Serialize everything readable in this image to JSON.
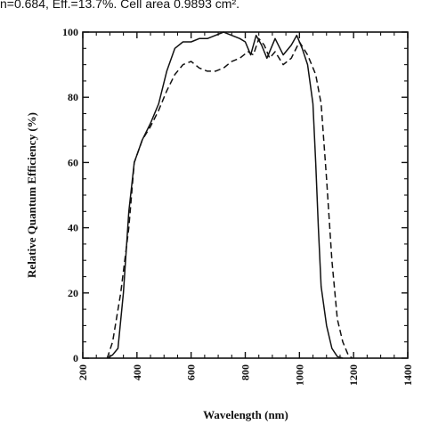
{
  "caption": "n=0.684, Eff.=13.7%. Cell area 0.9893 cm².",
  "chart_data": {
    "type": "line",
    "xlabel": "Wavelength (nm)",
    "ylabel": "Relative Quantum Efficiency (%)",
    "xlim": [
      200,
      1400
    ],
    "ylim": [
      0,
      100
    ],
    "x_ticks": [
      200,
      400,
      600,
      800,
      1000,
      1200,
      1400
    ],
    "y_ticks": [
      0,
      20,
      40,
      60,
      80,
      100
    ],
    "grid": false,
    "series": [
      {
        "style": "solid",
        "color": "#111111",
        "points": [
          [
            290,
            0
          ],
          [
            310,
            1
          ],
          [
            330,
            3
          ],
          [
            350,
            20
          ],
          [
            370,
            45
          ],
          [
            390,
            60
          ],
          [
            420,
            67
          ],
          [
            450,
            72
          ],
          [
            480,
            78
          ],
          [
            510,
            88
          ],
          [
            540,
            95
          ],
          [
            570,
            97
          ],
          [
            600,
            97
          ],
          [
            630,
            98
          ],
          [
            660,
            98
          ],
          [
            690,
            99
          ],
          [
            720,
            100
          ],
          [
            750,
            99
          ],
          [
            780,
            98
          ],
          [
            800,
            97
          ],
          [
            820,
            93
          ],
          [
            840,
            99
          ],
          [
            860,
            96
          ],
          [
            880,
            92
          ],
          [
            910,
            98
          ],
          [
            940,
            93
          ],
          [
            970,
            96
          ],
          [
            990,
            99
          ],
          [
            1010,
            95
          ],
          [
            1030,
            90
          ],
          [
            1050,
            78
          ],
          [
            1060,
            60
          ],
          [
            1070,
            40
          ],
          [
            1080,
            22
          ],
          [
            1100,
            10
          ],
          [
            1120,
            3
          ],
          [
            1140,
            0.5
          ],
          [
            1160,
            0
          ]
        ]
      },
      {
        "style": "dashed",
        "color": "#111111",
        "points": [
          [
            290,
            0
          ],
          [
            310,
            5
          ],
          [
            340,
            20
          ],
          [
            370,
            40
          ],
          [
            390,
            60
          ],
          [
            420,
            67
          ],
          [
            450,
            71
          ],
          [
            480,
            76
          ],
          [
            510,
            82
          ],
          [
            540,
            87
          ],
          [
            570,
            90
          ],
          [
            600,
            91
          ],
          [
            630,
            89
          ],
          [
            660,
            88
          ],
          [
            690,
            88
          ],
          [
            720,
            89
          ],
          [
            750,
            91
          ],
          [
            780,
            92
          ],
          [
            810,
            94
          ],
          [
            830,
            93
          ],
          [
            850,
            98
          ],
          [
            870,
            96
          ],
          [
            890,
            92
          ],
          [
            910,
            94
          ],
          [
            940,
            90
          ],
          [
            970,
            92
          ],
          [
            1000,
            97
          ],
          [
            1030,
            93
          ],
          [
            1060,
            87
          ],
          [
            1080,
            78
          ],
          [
            1100,
            55
          ],
          [
            1120,
            30
          ],
          [
            1140,
            12
          ],
          [
            1160,
            5
          ],
          [
            1180,
            1
          ],
          [
            1195,
            0
          ]
        ]
      }
    ]
  }
}
